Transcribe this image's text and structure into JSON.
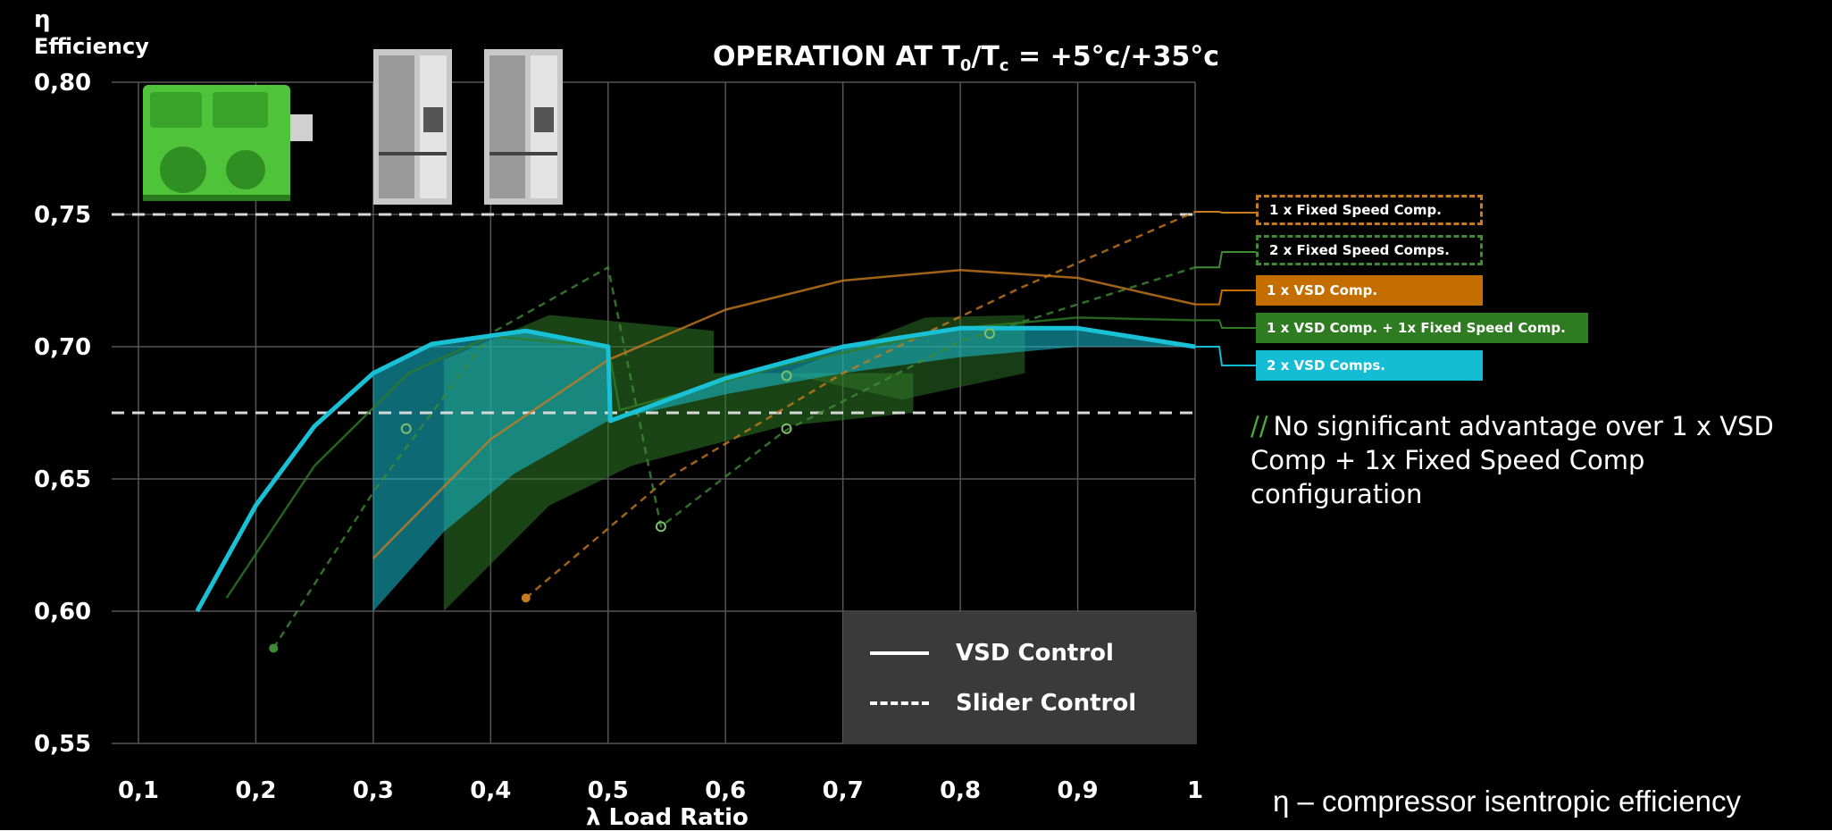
{
  "y_symbol": "η",
  "chart_data": {
    "type": "line",
    "title_main": "OPERATION AT T",
    "title_sub0": "0",
    "title_slash": "/T",
    "title_subc": "c",
    "title_tail": " = +5°c/+35°c",
    "ylabel": "Efficiency",
    "xlabel": "λ Load Ratio",
    "xlim": [
      0.1,
      1.0
    ],
    "ylim": [
      0.55,
      0.8
    ],
    "xticks": [
      "0,1",
      "0,2",
      "0,3",
      "0,4",
      "0,5",
      "0,6",
      "0,7",
      "0,8",
      "0,9",
      "1"
    ],
    "yticks": [
      "0,80",
      "0,75",
      "0,70",
      "0,65",
      "0,60",
      "0,55"
    ],
    "ytick_values": [
      0.8,
      0.75,
      0.7,
      0.65,
      0.6,
      0.55
    ],
    "xtick_values": [
      0.1,
      0.2,
      0.3,
      0.4,
      0.5,
      0.6,
      0.7,
      0.8,
      0.9,
      1.0
    ],
    "reference_lines": [
      0.75,
      0.675
    ],
    "legend_styles": [
      {
        "label": "VSD Control",
        "style": "solid"
      },
      {
        "label": "Slider Control",
        "style": "dashed"
      }
    ],
    "series": [
      {
        "name": "1 x Fixed Speed Comp.",
        "color": "#c77a1e",
        "style": "dashed",
        "points": [
          [
            0.43,
            0.605
          ],
          [
            0.55,
            0.65
          ],
          [
            0.7,
            0.69
          ],
          [
            0.85,
            0.722
          ],
          [
            1.0,
            0.751
          ]
        ]
      },
      {
        "name": "2 x Fixed Speed Comps.",
        "color": "#3f8a34",
        "style": "dashed",
        "points": [
          [
            0.215,
            0.586
          ],
          [
            0.3,
            0.645
          ],
          [
            0.4,
            0.705
          ],
          [
            0.5,
            0.73
          ],
          [
            0.545,
            0.632
          ],
          [
            0.65,
            0.668
          ],
          [
            0.8,
            0.702
          ],
          [
            0.9,
            0.716
          ],
          [
            1.0,
            0.73
          ]
        ]
      },
      {
        "name": "1 x VSD Comp.",
        "color": "#c77a1e",
        "style": "solid",
        "points": [
          [
            0.3,
            0.62
          ],
          [
            0.4,
            0.665
          ],
          [
            0.5,
            0.695
          ],
          [
            0.6,
            0.714
          ],
          [
            0.7,
            0.725
          ],
          [
            0.8,
            0.729
          ],
          [
            0.9,
            0.726
          ],
          [
            1.0,
            0.716
          ]
        ]
      },
      {
        "name": "1 x VSD Comp. + 1x Fixed Speed Comp.",
        "color": "#2f7a28",
        "style": "solid",
        "points": [
          [
            0.175,
            0.605
          ],
          [
            0.25,
            0.655
          ],
          [
            0.33,
            0.69
          ],
          [
            0.4,
            0.704
          ],
          [
            0.5,
            0.7
          ],
          [
            0.51,
            0.676
          ],
          [
            0.65,
            0.693
          ],
          [
            0.8,
            0.707
          ],
          [
            0.9,
            0.711
          ],
          [
            1.0,
            0.71
          ]
        ]
      },
      {
        "name": "2 x VSD Comps.",
        "color": "#18c1d6",
        "style": "solid",
        "points": [
          [
            0.15,
            0.6
          ],
          [
            0.2,
            0.64
          ],
          [
            0.25,
            0.67
          ],
          [
            0.3,
            0.69
          ],
          [
            0.35,
            0.701
          ],
          [
            0.43,
            0.706
          ],
          [
            0.5,
            0.7
          ],
          [
            0.502,
            0.672
          ],
          [
            0.6,
            0.688
          ],
          [
            0.7,
            0.7
          ],
          [
            0.8,
            0.707
          ],
          [
            0.9,
            0.707
          ],
          [
            1.0,
            0.7
          ]
        ]
      }
    ]
  },
  "legend_tags": [
    {
      "label": "1 x Fixed Speed Comp.",
      "style": "dashed",
      "color": "#c77a1e"
    },
    {
      "label": "2 x Fixed Speed Comps.",
      "style": "dashed",
      "color": "#3f8a34"
    },
    {
      "label": "1 x VSD Comp.",
      "style": "filled",
      "color": "#c46e00"
    },
    {
      "label": "1 x VSD Comp. + 1x Fixed Speed Comp.",
      "style": "filled",
      "color": "#2e7b22"
    },
    {
      "label": "2 x VSD Comps.",
      "style": "filled",
      "color": "#14bcd4"
    }
  ],
  "note": {
    "prefix": "//",
    "text": "No significant advantage over 1 x VSD Comp + 1x Fixed Speed Comp configuration"
  },
  "footer": "η – compressor isentropic efficiency",
  "colors": {
    "background": "#000000",
    "grid": "#555555",
    "reference_line": "#d8d8d8",
    "vsd_cyan": "#18c1d6",
    "green": "#2f7a28",
    "orange": "#c77a1e"
  },
  "images": [
    "green-compressor-unit",
    "vsd-drive-cabinet",
    "vsd-drive-cabinet"
  ]
}
